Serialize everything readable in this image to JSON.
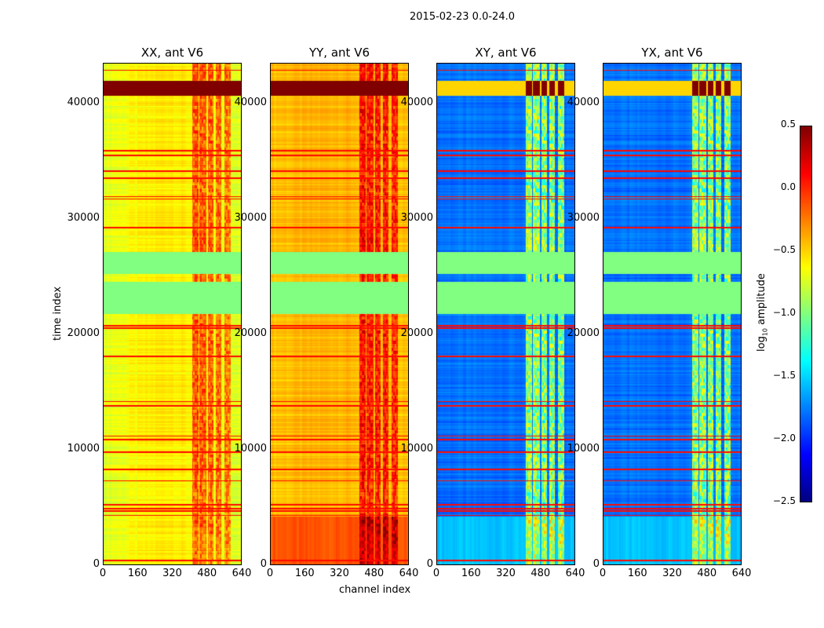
{
  "chart_data": {
    "type": "heatmap",
    "title": "2015-02-23 0.0-24.0",
    "xlabel": "channel index",
    "ylabel": "time index",
    "xlim": [
      0,
      640
    ],
    "ylim": [
      0,
      43540
    ],
    "xticks": [
      "0",
      "160",
      "320",
      "480",
      "640"
    ],
    "xtick_values": [
      0,
      160,
      320,
      480,
      640
    ],
    "yticks": [
      "0",
      "10000",
      "20000",
      "30000",
      "40000"
    ],
    "ytick_values": [
      0,
      10000,
      20000,
      30000,
      40000
    ],
    "colorbar": {
      "label_prefix": "log",
      "label_sub": "10",
      "label_suffix": " amplitude",
      "clim": [
        -2.5,
        0.5
      ],
      "ticks": [
        "0.5",
        "0.0",
        "−0.5",
        "−1.0",
        "−1.5",
        "−2.0",
        "−2.5"
      ],
      "tick_values": [
        0.5,
        0.0,
        -0.5,
        -1.0,
        -1.5,
        -2.0,
        -2.5
      ],
      "colormap": "jet"
    },
    "flagged_time_ranges": [
      [
        21800,
        24600
      ],
      [
        25300,
        27200
      ]
    ],
    "flagged_value": -1.0,
    "rfi_channel_ranges": [
      [
        410,
        440
      ],
      [
        445,
        478
      ],
      [
        485,
        510
      ],
      [
        520,
        545
      ],
      [
        560,
        592
      ]
    ],
    "strong_rfi_time_range": [
      40800,
      42100
    ],
    "high_rows": [
      400,
      4300,
      4700,
      4900,
      5200,
      7300,
      8300,
      9800,
      10900,
      11200,
      13800,
      14200,
      18100,
      20600,
      20800,
      29300,
      31800,
      32000,
      33600,
      34200,
      35600,
      36000,
      43000
    ],
    "panels": [
      {
        "title": "XX, ant V6",
        "base": -0.72,
        "base_center": -0.55,
        "low_time_base": null,
        "rfi_boost": 0.45
      },
      {
        "title": "YY, ant V6",
        "base": -0.45,
        "base_center": -0.4,
        "low_time_base": -0.12,
        "rfi_boost": 0.45
      },
      {
        "title": "XY, ant V6",
        "base": -1.8,
        "base_center": -1.8,
        "low_time_base": -1.55,
        "rfi_boost": 0.8
      },
      {
        "title": "YX, ant V6",
        "base": -1.8,
        "base_center": -1.8,
        "low_time_base": -1.55,
        "rfi_boost": 0.8
      }
    ]
  }
}
